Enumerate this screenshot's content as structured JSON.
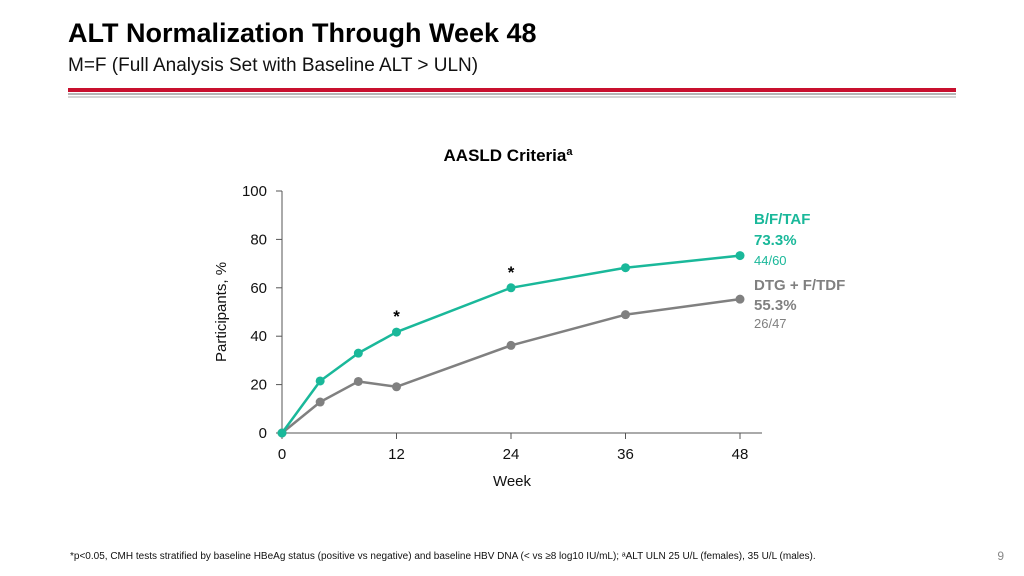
{
  "header": {
    "title": "ALT Normalization Through Week 48",
    "subtitle": "M=F (Full Analysis Set with Baseline ALT > ULN)",
    "brand_color": "#c8102e"
  },
  "chart_data": {
    "type": "line",
    "title": "AASLD Criteria",
    "title_superscript": "a",
    "xlabel": "Week",
    "ylabel": "Participants, %",
    "xlim": [
      0,
      48
    ],
    "ylim": [
      0,
      100
    ],
    "xticks": [
      0,
      12,
      24,
      36,
      48
    ],
    "yticks": [
      0,
      20,
      40,
      60,
      80,
      100
    ],
    "grid": false,
    "series": [
      {
        "name": "B/F/TAF",
        "color": "#1ab89a",
        "final_pct": "73.3%",
        "final_n": "44/60",
        "x": [
          0,
          4,
          8,
          12,
          24,
          36,
          48
        ],
        "y": [
          0,
          21.5,
          33,
          41.7,
          60,
          68.3,
          73.3
        ]
      },
      {
        "name": "DTG + F/TDF",
        "color": "#808080",
        "final_pct": "55.3%",
        "final_n": "26/47",
        "x": [
          0,
          4,
          8,
          12,
          24,
          36,
          48
        ],
        "y": [
          0,
          12.8,
          21.3,
          19.1,
          36.2,
          48.9,
          55.3
        ]
      }
    ],
    "annotations": [
      {
        "text": "*",
        "x": 12,
        "y": 41.7
      },
      {
        "text": "*",
        "x": 24,
        "y": 60
      }
    ]
  },
  "footer": {
    "footnote": "*p<0.05, CMH tests stratified by baseline HBeAg status (positive vs negative) and baseline HBV DNA (< vs ≥8 log10 IU/mL); ᵃALT ULN 25 U/L (females), 35 U/L (males).",
    "page_number": "9"
  }
}
